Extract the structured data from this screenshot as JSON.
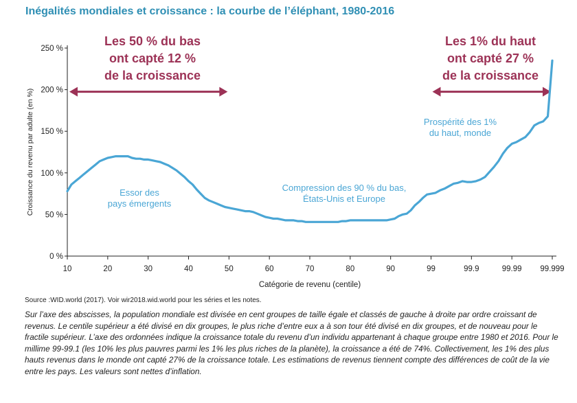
{
  "title": "Inégalités mondiales et croissance : la courbe de l’éléphant, 1980-2016",
  "source": "Source :WID.world (2017). Voir wir2018.wid.world pour les séries et les notes.",
  "notes": "Sur l’axe des abscisses, la population mondiale est divisée en cent groupes de taille égale et classés de gauche à droite par ordre croissant de revenus. Le centile supérieur a été divisé en dix groupes, le plus riche d’entre eux a à son tour été divisé en dix groupes, et de nouveau pour le fractile supérieur. L’axe des ordonnées indique la croissance totale du revenu d’un individu appartenant à chaque groupe entre 1980 et 2016. Pour le millime 99-99.1 (les 10% les plus pauvres parmi les 1% les plus riches de la planète), la croissance a été de 74%. Collectivement, les 1% des plus hauts revenus dans le monde ont capté 27% de la croissance totale. Les estimations de revenus tiennent compte des différences de coût de la vie entre les pays. Les valeurs sont nettes d’inflation.",
  "colors": {
    "line": "#4aa6d5",
    "accent": "#9c3256",
    "title": "#2f8fb4",
    "axis": "#222222"
  },
  "chart_data": {
    "type": "line",
    "title": "",
    "xlabel": "Catégorie de revenu (centile)",
    "ylabel": "Croissance du revenu par adulte (en %)",
    "ylim": [
      0,
      250
    ],
    "x_tick_labels": [
      "10",
      "20",
      "30",
      "40",
      "50",
      "60",
      "70",
      "80",
      "90",
      "99",
      "99.9",
      "99.99",
      "99.999"
    ],
    "y_ticks": [
      0,
      50,
      100,
      150,
      200,
      250
    ],
    "y_tick_labels": [
      "0 %",
      "50 %",
      "100 %",
      "150 %",
      "200 %",
      "250 %"
    ],
    "grid": false,
    "series": [
      {
        "x": [
          "10",
          "11",
          "12",
          "13",
          "14",
          "15",
          "16",
          "17",
          "18",
          "19",
          "20",
          "21",
          "22",
          "23",
          "24",
          "25",
          "26",
          "27",
          "28",
          "29",
          "30",
          "31",
          "32",
          "33",
          "34",
          "35",
          "36",
          "37",
          "38",
          "39",
          "40",
          "41",
          "42",
          "43",
          "44",
          "45",
          "46",
          "47",
          "48",
          "49",
          "50",
          "51",
          "52",
          "53",
          "54",
          "55",
          "56",
          "57",
          "58",
          "59",
          "60",
          "61",
          "62",
          "63",
          "64",
          "65",
          "66",
          "67",
          "68",
          "69",
          "70",
          "71",
          "72",
          "73",
          "74",
          "75",
          "76",
          "77",
          "78",
          "79",
          "80",
          "81",
          "82",
          "83",
          "84",
          "85",
          "86",
          "87",
          "88",
          "89",
          "90",
          "91",
          "92",
          "93",
          "94",
          "95",
          "96",
          "97",
          "98",
          "99",
          "99.1",
          "99.2",
          "99.3",
          "99.4",
          "99.5",
          "99.6",
          "99.7",
          "99.8",
          "99.9",
          "99.91",
          "99.92",
          "99.93",
          "99.94",
          "99.95",
          "99.96",
          "99.97",
          "99.98",
          "99.99",
          "99.991",
          "99.992",
          "99.993",
          "99.994",
          "99.995",
          "99.996",
          "99.997",
          "99.998",
          "99.999"
        ],
        "values": [
          78,
          86,
          90,
          94,
          98,
          102,
          106,
          110,
          114,
          116,
          118,
          119,
          120,
          120,
          120,
          120,
          118,
          117,
          117,
          116,
          116,
          115,
          114,
          113,
          111,
          109,
          106,
          103,
          99,
          95,
          90,
          86,
          80,
          75,
          70,
          67,
          65,
          63,
          61,
          59,
          58,
          57,
          56,
          55,
          54,
          54,
          53,
          51,
          49,
          47,
          46,
          45,
          45,
          44,
          43,
          43,
          43,
          42,
          42,
          41,
          41,
          41,
          41,
          41,
          41,
          41,
          41,
          41,
          42,
          42,
          43,
          43,
          43,
          43,
          43,
          43,
          43,
          43,
          43,
          43,
          44,
          45,
          48,
          50,
          51,
          55,
          61,
          65,
          70,
          74,
          76,
          79,
          81,
          84,
          87,
          88,
          90,
          89,
          89,
          90,
          92,
          95,
          101,
          107,
          114,
          123,
          130,
          135,
          137,
          140,
          143,
          149,
          157,
          160,
          162,
          168,
          235
        ]
      }
    ],
    "annotations": {
      "bottom_50": [
        "Les 50 % du bas",
        "ont capté 12 %",
        "de la croissance"
      ],
      "top_1": [
        "Les 1% du haut",
        "ont capté 27 %",
        "de la croissance"
      ],
      "emerging": [
        "Essor des",
        "pays émergents"
      ],
      "compression": [
        "Compression des 90 % du bas,",
        "États-Unis et Europe"
      ],
      "prosperity": [
        "Prospérité des 1%",
        "du haut, monde"
      ]
    }
  }
}
